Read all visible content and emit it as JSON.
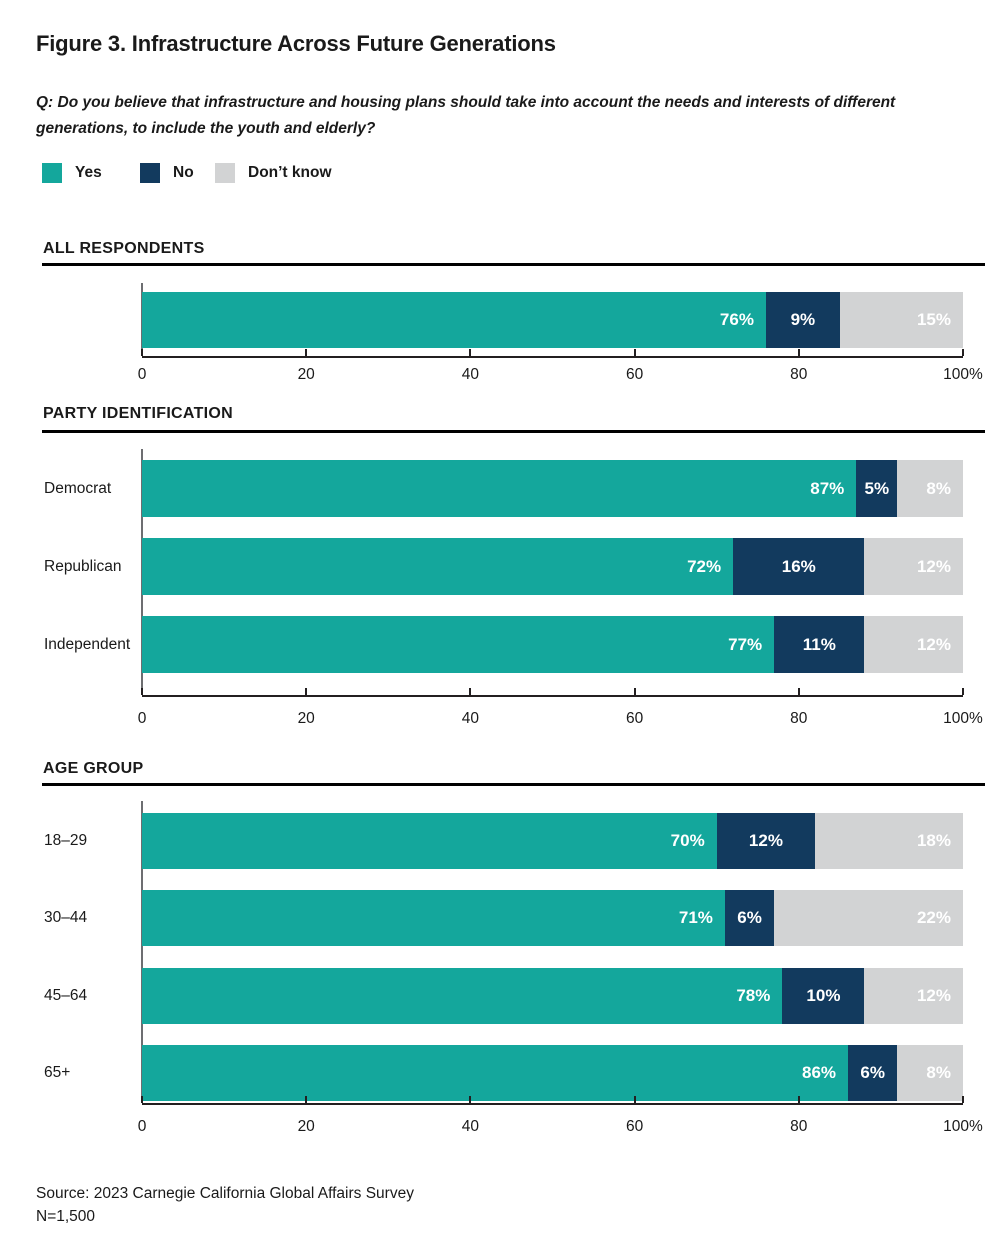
{
  "title": "Figure 3. Infrastructure Across Future Generations",
  "question": "Q: Do you believe that infrastructure and housing plans should take into account the needs and interests of different generations, to include the youth and elderly?",
  "legend": [
    {
      "label": "Yes",
      "color": "#14a79c"
    },
    {
      "label": "No",
      "color": "#123a5e"
    },
    {
      "label": "Don’t know",
      "color": "#d2d3d4"
    }
  ],
  "colors": {
    "yes": "#14a79c",
    "no": "#123a5e",
    "dont_know": "#d2d3d4",
    "text": "#1a1a1a",
    "axis": "#231f20",
    "spine": "#6d6e71",
    "header_rule": "#000000"
  },
  "chart_data": [
    {
      "type": "bar",
      "stacked": true,
      "orientation": "horizontal",
      "section": "ALL RESPONDENTS",
      "categories": [
        ""
      ],
      "series": [
        {
          "name": "Yes",
          "values": [
            76
          ]
        },
        {
          "name": "No",
          "values": [
            9
          ]
        },
        {
          "name": "Don’t know",
          "values": [
            15
          ]
        }
      ],
      "xlim": [
        0,
        100
      ],
      "xtick_values": [
        0,
        20,
        40,
        60,
        80,
        100
      ],
      "xtick_labels": [
        "0",
        "20",
        "40",
        "60",
        "80",
        "100%"
      ],
      "value_suffix": "%",
      "grid": false,
      "legend_position": "top-shared"
    },
    {
      "type": "bar",
      "stacked": true,
      "orientation": "horizontal",
      "section": "PARTY IDENTIFICATION",
      "categories": [
        "Democrat",
        "Republican",
        "Independent"
      ],
      "series": [
        {
          "name": "Yes",
          "values": [
            87,
            72,
            77
          ]
        },
        {
          "name": "No",
          "values": [
            5,
            16,
            11
          ]
        },
        {
          "name": "Don’t know",
          "values": [
            8,
            12,
            12
          ]
        }
      ],
      "xlim": [
        0,
        100
      ],
      "xtick_values": [
        0,
        20,
        40,
        60,
        80,
        100
      ],
      "xtick_labels": [
        "0",
        "20",
        "40",
        "60",
        "80",
        "100%"
      ],
      "value_suffix": "%",
      "grid": false,
      "legend_position": "top-shared"
    },
    {
      "type": "bar",
      "stacked": true,
      "orientation": "horizontal",
      "section": "AGE GROUP",
      "categories": [
        "18–29",
        "30–44",
        "45–64",
        "65+"
      ],
      "series": [
        {
          "name": "Yes",
          "values": [
            70,
            71,
            78,
            86
          ]
        },
        {
          "name": "No",
          "values": [
            12,
            6,
            10,
            6
          ]
        },
        {
          "name": "Don’t know",
          "values": [
            18,
            22,
            12,
            8
          ]
        }
      ],
      "xlim": [
        0,
        100
      ],
      "xtick_values": [
        0,
        20,
        40,
        60,
        80,
        100
      ],
      "xtick_labels": [
        "0",
        "20",
        "40",
        "60",
        "80",
        "100%"
      ],
      "value_suffix": "%",
      "grid": false,
      "legend_position": "top-shared"
    }
  ],
  "source": "Source: 2023 Carnegie California Global Affairs Survey",
  "sample_size": "N=1,500"
}
